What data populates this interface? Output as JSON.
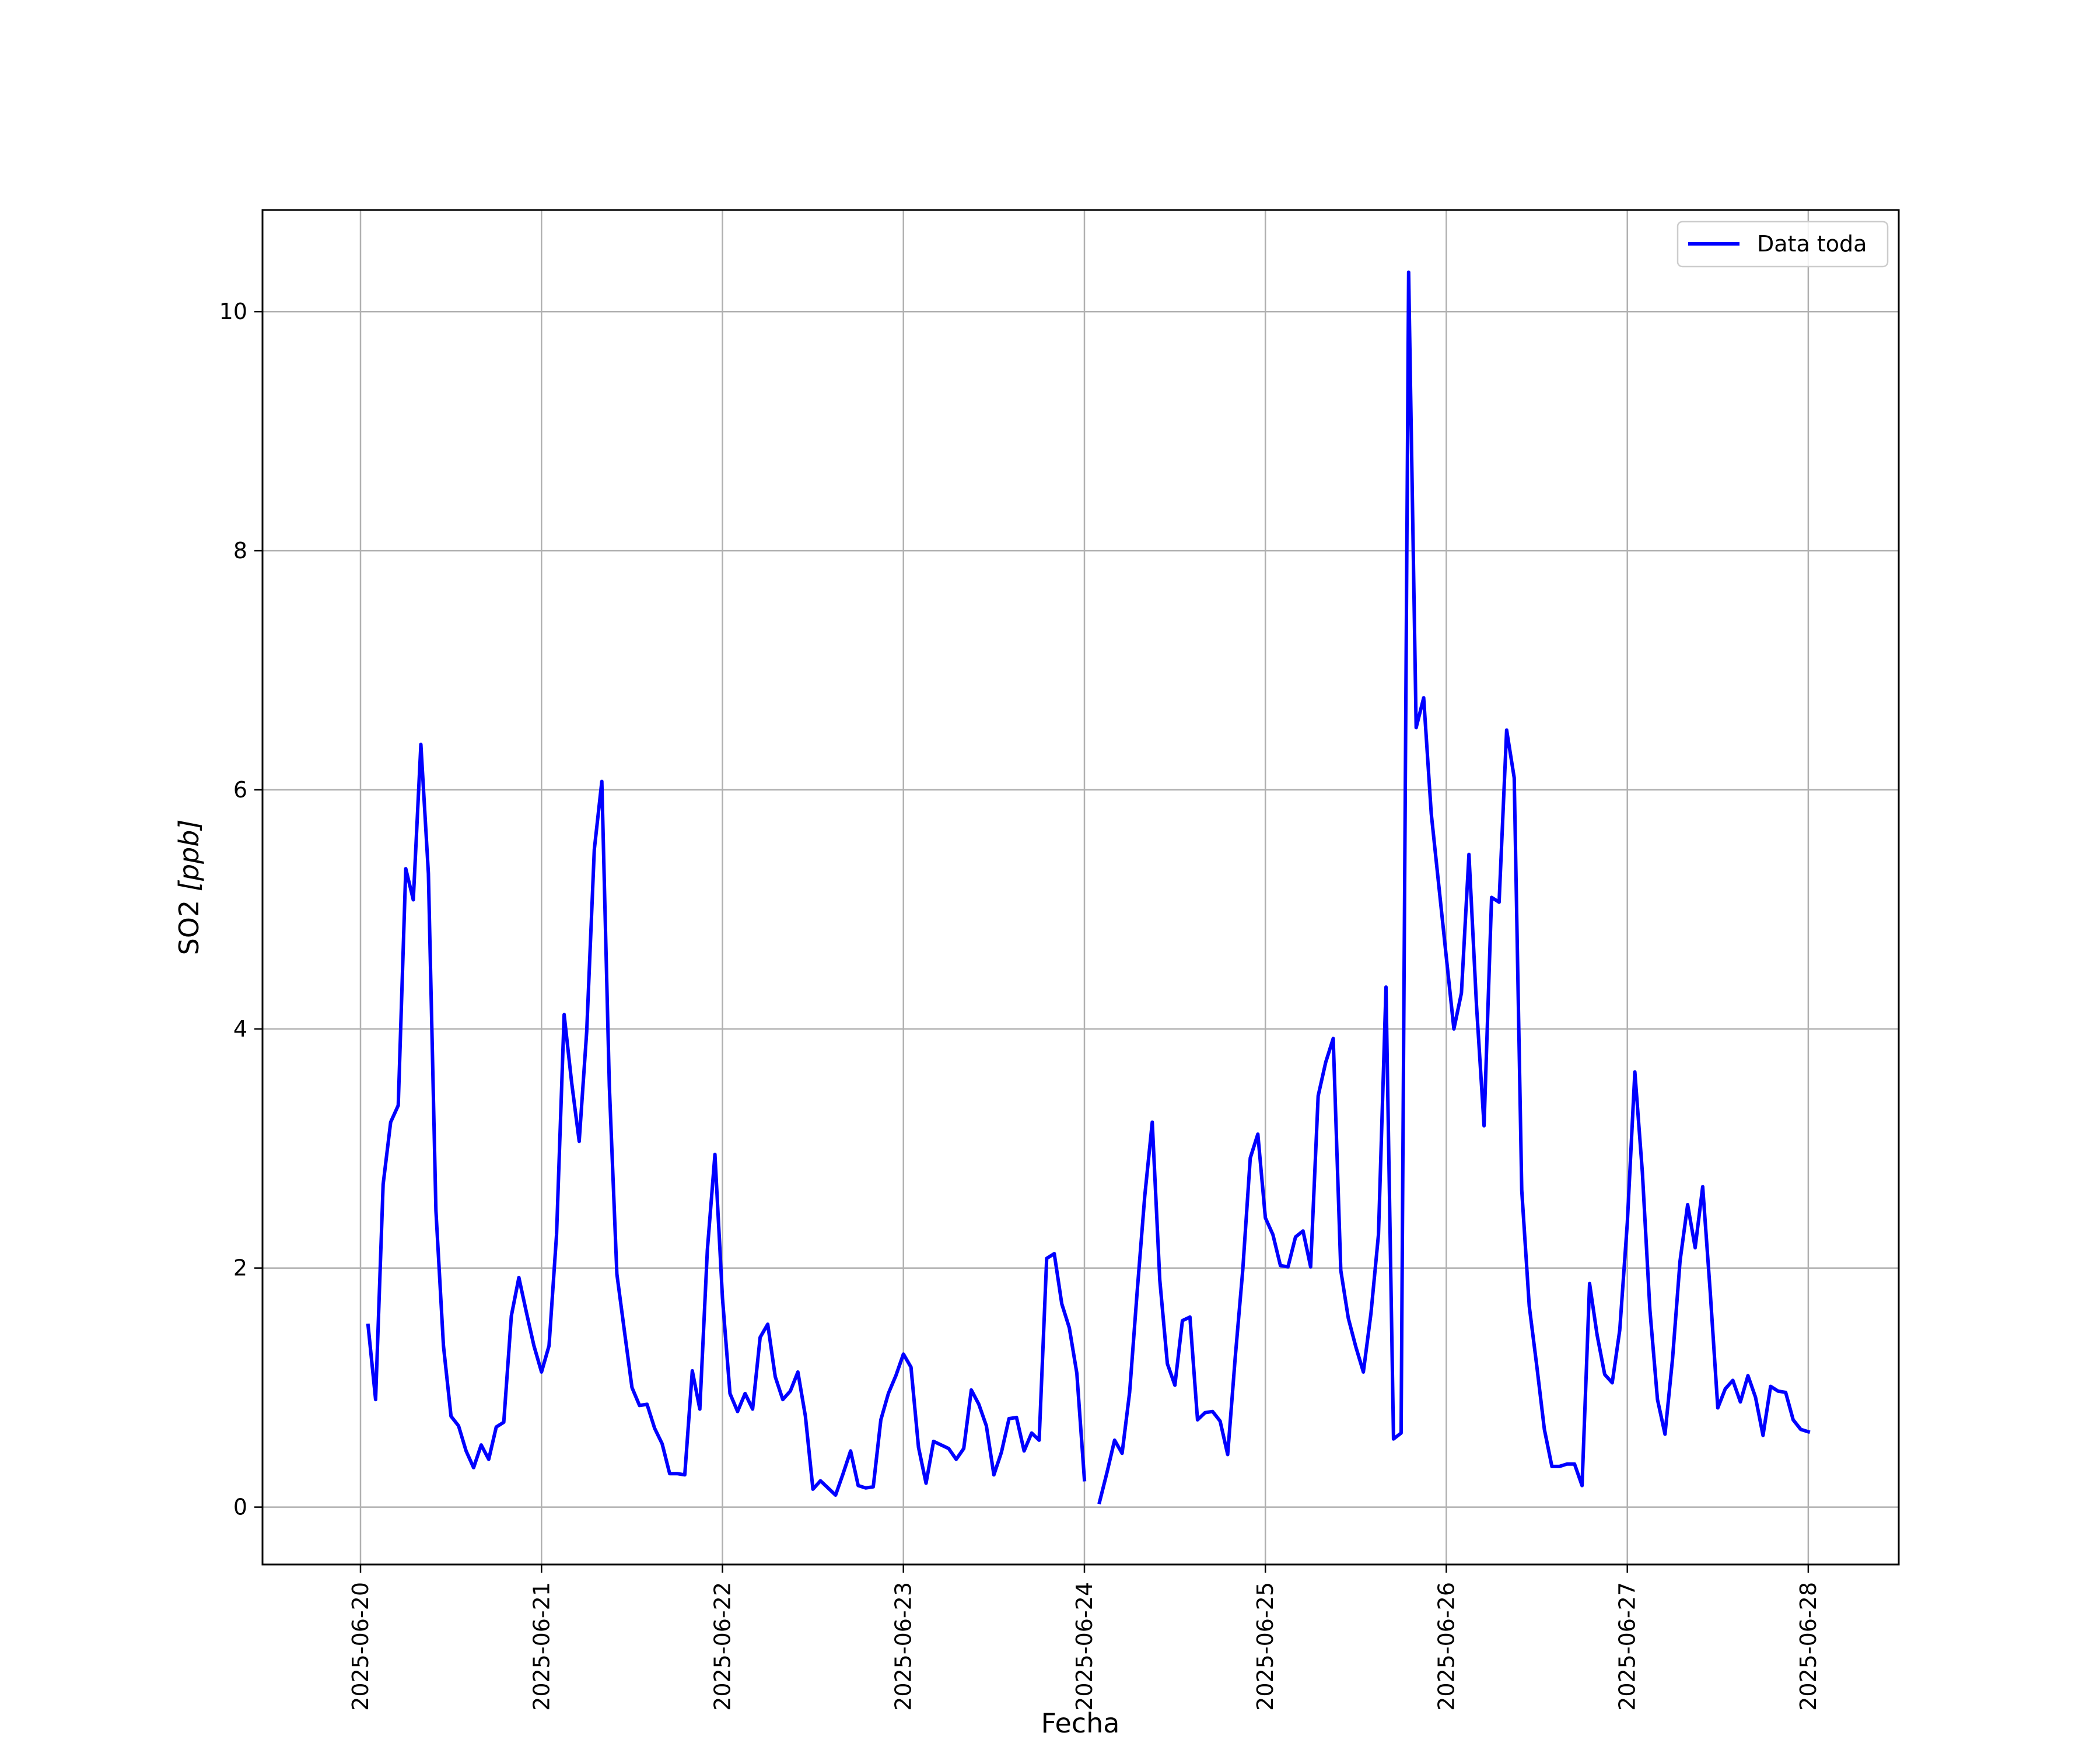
{
  "chart_data": {
    "type": "line",
    "xlabel": "Fecha",
    "ylabel_text": "SO2 ",
    "ylabel_unit": "[ppb]",
    "x_ticks": [
      "2025-06-20",
      "2025-06-21",
      "2025-06-22",
      "2025-06-23",
      "2025-06-24",
      "2025-06-25",
      "2025-06-26",
      "2025-06-27",
      "2025-06-28"
    ],
    "y_ticks": [
      0,
      2,
      4,
      6,
      8,
      10
    ],
    "xlim": [
      "2025-06-19T11:00",
      "2025-06-28T12:00"
    ],
    "ylim": [
      -0.48,
      10.85
    ],
    "grid": true,
    "legend_position": "top-right",
    "series": [
      {
        "name": "Data toda",
        "color": "#0000ff",
        "segments": [
          [
            [
              "2025-06-20T01:00",
              1.52
            ],
            [
              "2025-06-20T02:00",
              0.9
            ],
            [
              "2025-06-20T03:00",
              2.7
            ],
            [
              "2025-06-20T04:00",
              3.22
            ],
            [
              "2025-06-20T05:00",
              3.36
            ],
            [
              "2025-06-20T06:00",
              5.34
            ],
            [
              "2025-06-20T07:00",
              5.08
            ],
            [
              "2025-06-20T08:00",
              6.38
            ],
            [
              "2025-06-20T09:00",
              5.3
            ],
            [
              "2025-06-20T10:00",
              2.48
            ],
            [
              "2025-06-20T11:00",
              1.35
            ],
            [
              "2025-06-20T12:00",
              0.76
            ],
            [
              "2025-06-20T13:00",
              0.68
            ],
            [
              "2025-06-20T14:00",
              0.47
            ],
            [
              "2025-06-20T15:00",
              0.33
            ],
            [
              "2025-06-20T16:00",
              0.52
            ],
            [
              "2025-06-20T17:00",
              0.4
            ],
            [
              "2025-06-20T18:00",
              0.67
            ],
            [
              "2025-06-20T19:00",
              0.71
            ],
            [
              "2025-06-20T20:00",
              1.6
            ],
            [
              "2025-06-20T21:00",
              1.92
            ],
            [
              "2025-06-20T22:00",
              1.63
            ],
            [
              "2025-06-20T23:00",
              1.35
            ],
            [
              "2025-06-21T00:00",
              1.13
            ],
            [
              "2025-06-21T01:00",
              1.35
            ],
            [
              "2025-06-21T02:00",
              2.28
            ],
            [
              "2025-06-21T03:00",
              4.12
            ],
            [
              "2025-06-21T04:00",
              3.55
            ],
            [
              "2025-06-21T05:00",
              3.06
            ],
            [
              "2025-06-21T06:00",
              3.98
            ],
            [
              "2025-06-21T07:00",
              5.5
            ],
            [
              "2025-06-21T08:00",
              6.07
            ],
            [
              "2025-06-21T09:00",
              3.52
            ],
            [
              "2025-06-21T10:00",
              1.95
            ],
            [
              "2025-06-21T11:00",
              1.47
            ],
            [
              "2025-06-21T12:00",
              1.0
            ],
            [
              "2025-06-21T13:00",
              0.85
            ],
            [
              "2025-06-21T14:00",
              0.86
            ],
            [
              "2025-06-21T15:00",
              0.66
            ],
            [
              "2025-06-21T16:00",
              0.53
            ],
            [
              "2025-06-21T17:00",
              0.28
            ],
            [
              "2025-06-21T18:00",
              0.28
            ],
            [
              "2025-06-21T19:00",
              0.27
            ],
            [
              "2025-06-21T20:00",
              1.14
            ],
            [
              "2025-06-21T21:00",
              0.82
            ],
            [
              "2025-06-21T22:00",
              2.15
            ],
            [
              "2025-06-21T23:00",
              2.95
            ],
            [
              "2025-06-22T00:00",
              1.75
            ],
            [
              "2025-06-22T01:00",
              0.95
            ],
            [
              "2025-06-22T02:00",
              0.8
            ],
            [
              "2025-06-22T03:00",
              0.95
            ],
            [
              "2025-06-22T04:00",
              0.82
            ],
            [
              "2025-06-22T05:00",
              1.42
            ],
            [
              "2025-06-22T06:00",
              1.53
            ],
            [
              "2025-06-22T07:00",
              1.09
            ],
            [
              "2025-06-22T08:00",
              0.9
            ],
            [
              "2025-06-22T09:00",
              0.97
            ],
            [
              "2025-06-22T10:00",
              1.13
            ],
            [
              "2025-06-22T11:00",
              0.76
            ],
            [
              "2025-06-22T12:00",
              0.15
            ],
            [
              "2025-06-22T13:00",
              0.22
            ],
            [
              "2025-06-22T14:00",
              0.16
            ],
            [
              "2025-06-22T15:00",
              0.1
            ],
            [
              "2025-06-22T16:00",
              0.28
            ],
            [
              "2025-06-22T17:00",
              0.47
            ],
            [
              "2025-06-22T18:00",
              0.18
            ],
            [
              "2025-06-22T19:00",
              0.16
            ],
            [
              "2025-06-22T20:00",
              0.17
            ],
            [
              "2025-06-22T21:00",
              0.73
            ],
            [
              "2025-06-22T22:00",
              0.95
            ],
            [
              "2025-06-22T23:00",
              1.1
            ],
            [
              "2025-06-23T00:00",
              1.28
            ],
            [
              "2025-06-23T01:00",
              1.17
            ],
            [
              "2025-06-23T02:00",
              0.5
            ],
            [
              "2025-06-23T03:00",
              0.2
            ],
            [
              "2025-06-23T04:00",
              0.55
            ],
            [
              "2025-06-23T05:00",
              0.52
            ],
            [
              "2025-06-23T06:00",
              0.49
            ],
            [
              "2025-06-23T07:00",
              0.4
            ],
            [
              "2025-06-23T08:00",
              0.49
            ],
            [
              "2025-06-23T09:00",
              0.98
            ],
            [
              "2025-06-23T10:00",
              0.86
            ],
            [
              "2025-06-23T11:00",
              0.68
            ],
            [
              "2025-06-23T12:00",
              0.27
            ],
            [
              "2025-06-23T13:00",
              0.46
            ],
            [
              "2025-06-23T14:00",
              0.74
            ],
            [
              "2025-06-23T15:00",
              0.75
            ],
            [
              "2025-06-23T16:00",
              0.47
            ],
            [
              "2025-06-23T17:00",
              0.62
            ],
            [
              "2025-06-23T18:00",
              0.56
            ],
            [
              "2025-06-23T19:00",
              2.08
            ],
            [
              "2025-06-23T20:00",
              2.12
            ],
            [
              "2025-06-23T21:00",
              1.7
            ],
            [
              "2025-06-23T22:00",
              1.5
            ],
            [
              "2025-06-23T23:00",
              1.12
            ],
            [
              "2025-06-24T00:00",
              0.23
            ]
          ],
          [
            [
              "2025-06-24T02:00",
              0.04
            ],
            [
              "2025-06-24T03:00",
              0.29
            ],
            [
              "2025-06-24T04:00",
              0.56
            ],
            [
              "2025-06-24T05:00",
              0.45
            ],
            [
              "2025-06-24T06:00",
              0.96
            ],
            [
              "2025-06-24T07:00",
              1.8
            ],
            [
              "2025-06-24T08:00",
              2.6
            ],
            [
              "2025-06-24T09:00",
              3.22
            ],
            [
              "2025-06-24T10:00",
              1.9
            ],
            [
              "2025-06-24T11:00",
              1.2
            ],
            [
              "2025-06-24T12:00",
              1.02
            ],
            [
              "2025-06-24T13:00",
              1.56
            ],
            [
              "2025-06-24T14:00",
              1.59
            ],
            [
              "2025-06-24T15:00",
              0.73
            ],
            [
              "2025-06-24T16:00",
              0.79
            ],
            [
              "2025-06-24T17:00",
              0.8
            ],
            [
              "2025-06-24T18:00",
              0.72
            ],
            [
              "2025-06-24T19:00",
              0.44
            ],
            [
              "2025-06-24T20:00",
              1.25
            ],
            [
              "2025-06-24T21:00",
              1.98
            ],
            [
              "2025-06-24T22:00",
              2.92
            ],
            [
              "2025-06-24T23:00",
              3.12
            ],
            [
              "2025-06-25T00:00",
              2.42
            ],
            [
              "2025-06-25T01:00",
              2.28
            ],
            [
              "2025-06-25T02:00",
              2.02
            ],
            [
              "2025-06-25T03:00",
              2.01
            ],
            [
              "2025-06-25T04:00",
              2.26
            ],
            [
              "2025-06-25T05:00",
              2.31
            ],
            [
              "2025-06-25T06:00",
              2.01
            ],
            [
              "2025-06-25T07:00",
              3.44
            ],
            [
              "2025-06-25T08:00",
              3.72
            ],
            [
              "2025-06-25T09:00",
              3.92
            ],
            [
              "2025-06-25T10:00",
              1.98
            ],
            [
              "2025-06-25T11:00",
              1.58
            ],
            [
              "2025-06-25T12:00",
              1.34
            ],
            [
              "2025-06-25T13:00",
              1.13
            ],
            [
              "2025-06-25T14:00",
              1.62
            ],
            [
              "2025-06-25T15:00",
              2.28
            ],
            [
              "2025-06-25T16:00",
              4.35
            ],
            [
              "2025-06-25T17:00",
              0.57
            ],
            [
              "2025-06-25T18:00",
              0.62
            ],
            [
              "2025-06-25T19:00",
              10.33
            ],
            [
              "2025-06-25T20:00",
              6.52
            ],
            [
              "2025-06-25T21:00",
              6.77
            ],
            [
              "2025-06-25T22:00",
              5.8
            ],
            [
              "2025-06-25T23:00",
              5.2
            ],
            [
              "2025-06-26T00:00",
              4.6
            ],
            [
              "2025-06-26T01:00",
              4.0
            ],
            [
              "2025-06-26T02:00",
              4.3
            ],
            [
              "2025-06-26T03:00",
              5.46
            ],
            [
              "2025-06-26T04:00",
              4.2
            ],
            [
              "2025-06-26T05:00",
              3.19
            ],
            [
              "2025-06-26T06:00",
              5.1
            ],
            [
              "2025-06-26T07:00",
              5.06
            ],
            [
              "2025-06-26T08:00",
              6.5
            ],
            [
              "2025-06-26T09:00",
              6.1
            ],
            [
              "2025-06-26T10:00",
              2.65
            ],
            [
              "2025-06-26T11:00",
              1.68
            ],
            [
              "2025-06-26T12:00",
              1.18
            ],
            [
              "2025-06-26T13:00",
              0.65
            ],
            [
              "2025-06-26T14:00",
              0.34
            ],
            [
              "2025-06-26T15:00",
              0.34
            ],
            [
              "2025-06-26T16:00",
              0.36
            ],
            [
              "2025-06-26T17:00",
              0.36
            ],
            [
              "2025-06-26T18:00",
              0.18
            ],
            [
              "2025-06-26T19:00",
              1.87
            ],
            [
              "2025-06-26T20:00",
              1.44
            ],
            [
              "2025-06-26T21:00",
              1.11
            ],
            [
              "2025-06-26T22:00",
              1.04
            ],
            [
              "2025-06-26T23:00",
              1.48
            ],
            [
              "2025-06-27T00:00",
              2.38
            ],
            [
              "2025-06-27T01:00",
              3.64
            ],
            [
              "2025-06-27T02:00",
              2.8
            ],
            [
              "2025-06-27T03:00",
              1.65
            ],
            [
              "2025-06-27T04:00",
              0.9
            ],
            [
              "2025-06-27T05:00",
              0.61
            ],
            [
              "2025-06-27T06:00",
              1.24
            ],
            [
              "2025-06-27T07:00",
              2.06
            ],
            [
              "2025-06-27T08:00",
              2.53
            ],
            [
              "2025-06-27T09:00",
              2.17
            ],
            [
              "2025-06-27T10:00",
              2.68
            ],
            [
              "2025-06-27T11:00",
              1.8
            ],
            [
              "2025-06-27T12:00",
              0.83
            ],
            [
              "2025-06-27T13:00",
              0.99
            ],
            [
              "2025-06-27T14:00",
              1.06
            ],
            [
              "2025-06-27T15:00",
              0.88
            ],
            [
              "2025-06-27T16:00",
              1.1
            ],
            [
              "2025-06-27T17:00",
              0.92
            ],
            [
              "2025-06-27T18:00",
              0.6
            ],
            [
              "2025-06-27T19:00",
              1.01
            ],
            [
              "2025-06-27T20:00",
              0.97
            ],
            [
              "2025-06-27T21:00",
              0.96
            ],
            [
              "2025-06-27T22:00",
              0.73
            ],
            [
              "2025-06-27T23:00",
              0.65
            ],
            [
              "2025-06-28T00:00",
              0.63
            ]
          ]
        ]
      }
    ]
  }
}
